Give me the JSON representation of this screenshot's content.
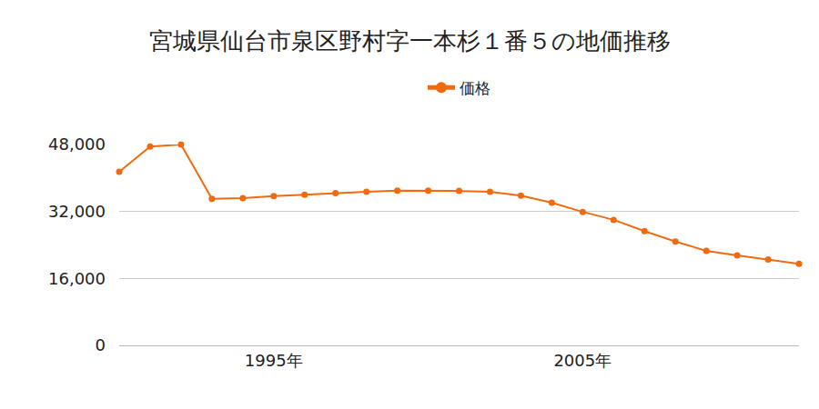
{
  "chart_data": {
    "type": "line",
    "title": "宮城県仙台市泉区野村字一本杉１番５の地価推移",
    "x": [
      1990,
      1991,
      1992,
      1993,
      1994,
      1995,
      1996,
      1997,
      1998,
      1999,
      2000,
      2001,
      2002,
      2003,
      2004,
      2005,
      2006,
      2007,
      2008,
      2009,
      2010,
      2011,
      2012
    ],
    "series": [
      {
        "name": "価格",
        "color": "#f26a0f",
        "marker": "circle",
        "line_style": "solid",
        "values": [
          41500,
          47500,
          48000,
          35000,
          35200,
          35700,
          36000,
          36400,
          36700,
          37000,
          37000,
          36900,
          36700,
          35800,
          34100,
          31900,
          30000,
          27300,
          24800,
          22600,
          21500,
          20500,
          19500
        ]
      }
    ],
    "xlim": [
      1990,
      2012
    ],
    "xticks": [
      {
        "value": 1995,
        "label": "1995年"
      },
      {
        "value": 2005,
        "label": "2005年"
      }
    ],
    "ylim": [
      0,
      48000
    ],
    "yticks": [
      0,
      {
        "value": 16000,
        "label": "16,000"
      },
      {
        "value": 32000,
        "label": "32,000"
      },
      {
        "value": 48000,
        "label": "48,000"
      }
    ],
    "grid": true,
    "legend": "top"
  }
}
